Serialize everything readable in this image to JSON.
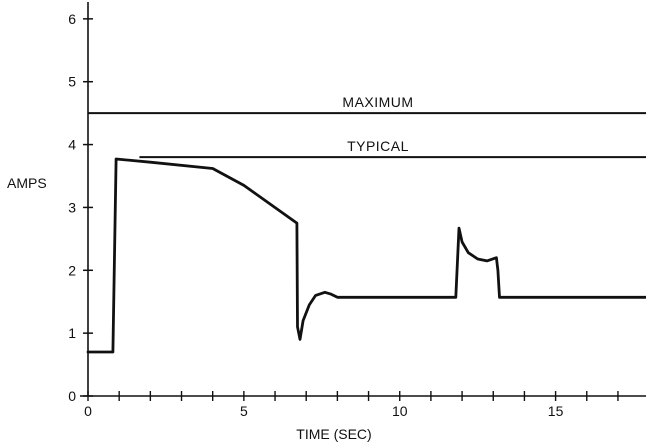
{
  "chart_data": {
    "type": "line",
    "xlabel": "TIME (SEC)",
    "ylabel": "AMPS",
    "xlim": [
      0,
      17.9
    ],
    "ylim": [
      0,
      6.3
    ],
    "x_ticks": [
      0,
      5,
      10,
      15
    ],
    "x_tick_labels": [
      "0",
      "5",
      "10",
      "15"
    ],
    "x_minor_step": 1,
    "y_ticks": [
      0,
      1,
      2,
      3,
      4,
      5,
      6
    ],
    "y_tick_labels": [
      "0",
      "1",
      "2",
      "3",
      "4",
      "5",
      "6"
    ],
    "grid": false,
    "series": [
      {
        "x": [
          0,
          0.8,
          0.9,
          2,
          4,
          5,
          6.7,
          6.72,
          6.8,
          6.9,
          7.1,
          7.3,
          7.6,
          7.8,
          8,
          9,
          10,
          11,
          11.8,
          11.9,
          12.0,
          12.2,
          12.5,
          12.8,
          13.1,
          13.15,
          13.2,
          14,
          15,
          16,
          17.9
        ],
        "y": [
          0.7,
          0.7,
          3.77,
          3.72,
          3.62,
          3.35,
          2.75,
          1.1,
          0.9,
          1.2,
          1.45,
          1.6,
          1.65,
          1.62,
          1.57,
          1.57,
          1.57,
          1.57,
          1.57,
          2.67,
          2.45,
          2.28,
          2.18,
          2.15,
          2.2,
          2.0,
          1.57,
          1.57,
          1.57,
          1.57,
          1.57
        ]
      }
    ],
    "reference_lines": [
      {
        "label": "MAXIMUM",
        "y": 4.5,
        "x_start": 0,
        "x_end": 17.9
      },
      {
        "label": "TYPICAL",
        "y": 3.8,
        "x_start": 1.65,
        "x_end": 17.9
      }
    ]
  }
}
